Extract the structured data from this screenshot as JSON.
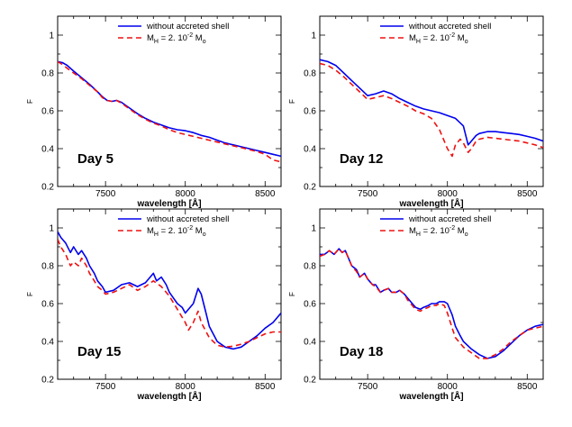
{
  "chart_data": [
    {
      "type": "line",
      "panel_label": "Day 5",
      "xlabel": "wavelength [Å]",
      "ylabel": "F",
      "xlim": [
        7200,
        8600
      ],
      "ylim": [
        0.2,
        1.1
      ],
      "xticks": [
        7500,
        8000,
        8500
      ],
      "yticks": [
        0.2,
        0.4,
        0.6,
        0.8,
        1.0
      ],
      "ytick_labels": [
        "0.2",
        "0.4",
        "0.6",
        "0.8",
        "1"
      ],
      "legend": {
        "loc": "top-right",
        "entries": [
          "without accreted shell",
          "M_H = 2. 10^-2 M_o"
        ]
      },
      "series": [
        {
          "name": "without accreted shell",
          "color": "#0000ee",
          "dash": "solid",
          "x": [
            7200,
            7230,
            7260,
            7300,
            7350,
            7400,
            7450,
            7480,
            7510,
            7540,
            7570,
            7600,
            7650,
            7700,
            7750,
            7800,
            7850,
            7900,
            7950,
            8000,
            8050,
            8100,
            8150,
            8200,
            8250,
            8300,
            8350,
            8400,
            8450,
            8500,
            8550,
            8600
          ],
          "y": [
            0.86,
            0.855,
            0.84,
            0.81,
            0.775,
            0.74,
            0.7,
            0.675,
            0.655,
            0.65,
            0.655,
            0.645,
            0.615,
            0.585,
            0.56,
            0.54,
            0.525,
            0.51,
            0.5,
            0.495,
            0.485,
            0.47,
            0.46,
            0.445,
            0.43,
            0.42,
            0.41,
            0.4,
            0.39,
            0.38,
            0.37,
            0.36
          ]
        },
        {
          "name": "M_H = 2. 10^-2 M_o",
          "color": "#ee1111",
          "dash": "dashed",
          "x": [
            7200,
            7230,
            7260,
            7300,
            7350,
            7400,
            7450,
            7480,
            7510,
            7540,
            7570,
            7600,
            7650,
            7700,
            7750,
            7800,
            7850,
            7900,
            7950,
            8000,
            8050,
            8100,
            8150,
            8200,
            8250,
            8300,
            8350,
            8400,
            8450,
            8500,
            8550,
            8600
          ],
          "y": [
            0.86,
            0.845,
            0.825,
            0.8,
            0.77,
            0.735,
            0.7,
            0.67,
            0.655,
            0.65,
            0.655,
            0.64,
            0.61,
            0.58,
            0.555,
            0.535,
            0.52,
            0.5,
            0.485,
            0.475,
            0.465,
            0.455,
            0.445,
            0.435,
            0.425,
            0.415,
            0.405,
            0.395,
            0.385,
            0.37,
            0.34,
            0.33
          ]
        }
      ]
    },
    {
      "type": "line",
      "panel_label": "Day 12",
      "xlabel": "wavelength [Å]",
      "ylabel": "F",
      "xlim": [
        7200,
        8600
      ],
      "ylim": [
        0.2,
        1.1
      ],
      "xticks": [
        7500,
        8000,
        8500
      ],
      "yticks": [
        0.2,
        0.4,
        0.6,
        0.8,
        1.0
      ],
      "ytick_labels": [
        "0.2",
        "0.4",
        "0.6",
        "0.8",
        "1"
      ],
      "legend": {
        "loc": "top-right",
        "entries": [
          "without accreted shell",
          "M_H = 2. 10^-2 M_o"
        ]
      },
      "series": [
        {
          "name": "without accreted shell",
          "color": "#0000ee",
          "dash": "solid",
          "x": [
            7200,
            7250,
            7300,
            7350,
            7400,
            7450,
            7500,
            7550,
            7600,
            7650,
            7700,
            7750,
            7800,
            7850,
            7900,
            7950,
            8000,
            8050,
            8100,
            8130,
            8150,
            8180,
            8200,
            8250,
            8300,
            8350,
            8400,
            8450,
            8500,
            8550,
            8600
          ],
          "y": [
            0.87,
            0.86,
            0.84,
            0.8,
            0.76,
            0.72,
            0.68,
            0.69,
            0.705,
            0.69,
            0.665,
            0.645,
            0.625,
            0.61,
            0.6,
            0.59,
            0.575,
            0.56,
            0.52,
            0.42,
            0.44,
            0.47,
            0.48,
            0.49,
            0.49,
            0.485,
            0.48,
            0.475,
            0.465,
            0.455,
            0.44
          ]
        },
        {
          "name": "M_H = 2. 10^-2 M_o",
          "color": "#ee1111",
          "dash": "dashed",
          "x": [
            7200,
            7250,
            7300,
            7350,
            7400,
            7450,
            7500,
            7550,
            7600,
            7650,
            7700,
            7750,
            7800,
            7850,
            7900,
            7950,
            8000,
            8030,
            8050,
            8080,
            8100,
            8130,
            8150,
            8180,
            8200,
            8250,
            8300,
            8350,
            8400,
            8450,
            8500,
            8550,
            8600
          ],
          "y": [
            0.85,
            0.84,
            0.815,
            0.78,
            0.74,
            0.7,
            0.66,
            0.67,
            0.68,
            0.665,
            0.645,
            0.625,
            0.6,
            0.585,
            0.56,
            0.5,
            0.4,
            0.36,
            0.42,
            0.45,
            0.43,
            0.38,
            0.4,
            0.44,
            0.45,
            0.46,
            0.455,
            0.45,
            0.445,
            0.44,
            0.43,
            0.42,
            0.405
          ]
        }
      ]
    },
    {
      "type": "line",
      "panel_label": "Day 15",
      "xlabel": "wavelength [Å]",
      "ylabel": "F",
      "xlim": [
        7200,
        8600
      ],
      "ylim": [
        0.2,
        1.1
      ],
      "xticks": [
        7500,
        8000,
        8500
      ],
      "yticks": [
        0.2,
        0.4,
        0.6,
        0.8,
        1.0
      ],
      "ytick_labels": [
        "0.2",
        "0.4",
        "0.6",
        "0.8",
        "1"
      ],
      "legend": {
        "loc": "top-right",
        "entries": [
          "without accreted shell",
          "M_H = 2. 10^-2 M_o"
        ]
      },
      "series": [
        {
          "name": "without accreted shell",
          "color": "#0000ee",
          "dash": "solid",
          "x": [
            7200,
            7220,
            7250,
            7280,
            7300,
            7330,
            7350,
            7380,
            7400,
            7430,
            7450,
            7480,
            7500,
            7550,
            7600,
            7650,
            7700,
            7750,
            7800,
            7820,
            7850,
            7880,
            7900,
            7950,
            7980,
            8000,
            8050,
            8080,
            8100,
            8130,
            8150,
            8200,
            8250,
            8300,
            8350,
            8400,
            8450,
            8500,
            8550,
            8600
          ],
          "y": [
            0.98,
            0.95,
            0.92,
            0.87,
            0.9,
            0.86,
            0.88,
            0.84,
            0.8,
            0.76,
            0.72,
            0.69,
            0.66,
            0.67,
            0.7,
            0.71,
            0.69,
            0.71,
            0.76,
            0.72,
            0.74,
            0.7,
            0.66,
            0.6,
            0.58,
            0.55,
            0.6,
            0.68,
            0.65,
            0.55,
            0.48,
            0.4,
            0.37,
            0.36,
            0.37,
            0.4,
            0.43,
            0.47,
            0.5,
            0.55
          ]
        },
        {
          "name": "M_H = 2. 10^-2 M_o",
          "color": "#ee1111",
          "dash": "dashed",
          "x": [
            7200,
            7220,
            7250,
            7280,
            7300,
            7330,
            7350,
            7380,
            7400,
            7430,
            7450,
            7480,
            7500,
            7550,
            7600,
            7650,
            7700,
            7750,
            7800,
            7850,
            7900,
            7950,
            8000,
            8020,
            8050,
            8080,
            8100,
            8150,
            8200,
            8250,
            8300,
            8350,
            8400,
            8450,
            8500,
            8550,
            8600
          ],
          "y": [
            0.94,
            0.9,
            0.86,
            0.8,
            0.82,
            0.8,
            0.84,
            0.8,
            0.76,
            0.72,
            0.69,
            0.67,
            0.65,
            0.66,
            0.68,
            0.7,
            0.67,
            0.69,
            0.72,
            0.69,
            0.64,
            0.57,
            0.5,
            0.46,
            0.5,
            0.56,
            0.5,
            0.42,
            0.38,
            0.37,
            0.375,
            0.385,
            0.4,
            0.42,
            0.44,
            0.45,
            0.45
          ]
        }
      ]
    },
    {
      "type": "line",
      "panel_label": "Day 18",
      "xlabel": "wavelength [Å]",
      "ylabel": "F",
      "xlim": [
        7200,
        8600
      ],
      "ylim": [
        0.2,
        1.1
      ],
      "xticks": [
        7500,
        8000,
        8500
      ],
      "yticks": [
        0.2,
        0.4,
        0.6,
        0.8,
        1.0
      ],
      "ytick_labels": [
        "0.2",
        "0.4",
        "0.6",
        "0.8",
        "1"
      ],
      "legend": {
        "loc": "top-right",
        "entries": [
          "without accreted shell",
          "M_H = 2. 10^-2 M_o"
        ]
      },
      "series": [
        {
          "name": "without accreted shell",
          "color": "#0000ee",
          "dash": "solid",
          "x": [
            7200,
            7230,
            7260,
            7290,
            7320,
            7340,
            7360,
            7380,
            7400,
            7430,
            7450,
            7480,
            7500,
            7530,
            7550,
            7580,
            7600,
            7630,
            7650,
            7680,
            7700,
            7730,
            7750,
            7780,
            7800,
            7830,
            7850,
            7880,
            7900,
            7930,
            7950,
            7980,
            8000,
            8030,
            8050,
            8080,
            8100,
            8150,
            8200,
            8250,
            8300,
            8350,
            8400,
            8450,
            8500,
            8550,
            8600
          ],
          "y": [
            0.86,
            0.86,
            0.88,
            0.86,
            0.89,
            0.87,
            0.88,
            0.84,
            0.8,
            0.78,
            0.74,
            0.76,
            0.73,
            0.7,
            0.7,
            0.66,
            0.67,
            0.68,
            0.66,
            0.66,
            0.67,
            0.65,
            0.63,
            0.6,
            0.58,
            0.57,
            0.58,
            0.59,
            0.6,
            0.6,
            0.61,
            0.61,
            0.6,
            0.54,
            0.48,
            0.43,
            0.4,
            0.36,
            0.33,
            0.31,
            0.32,
            0.35,
            0.39,
            0.43,
            0.46,
            0.48,
            0.49
          ]
        },
        {
          "name": "M_H = 2. 10^-2 M_o",
          "color": "#ee1111",
          "dash": "dashed",
          "x": [
            7200,
            7230,
            7260,
            7290,
            7320,
            7340,
            7360,
            7380,
            7400,
            7430,
            7450,
            7480,
            7500,
            7530,
            7550,
            7580,
            7600,
            7630,
            7650,
            7680,
            7700,
            7730,
            7750,
            7780,
            7800,
            7830,
            7850,
            7880,
            7900,
            7930,
            7950,
            7980,
            8000,
            8030,
            8050,
            8080,
            8100,
            8150,
            8200,
            8250,
            8300,
            8350,
            8400,
            8450,
            8500,
            8550,
            8600
          ],
          "y": [
            0.85,
            0.86,
            0.88,
            0.86,
            0.89,
            0.87,
            0.88,
            0.84,
            0.8,
            0.77,
            0.74,
            0.76,
            0.73,
            0.7,
            0.69,
            0.66,
            0.67,
            0.68,
            0.66,
            0.66,
            0.67,
            0.65,
            0.62,
            0.59,
            0.57,
            0.56,
            0.57,
            0.58,
            0.59,
            0.59,
            0.6,
            0.59,
            0.55,
            0.47,
            0.42,
            0.39,
            0.37,
            0.34,
            0.31,
            0.31,
            0.33,
            0.36,
            0.4,
            0.43,
            0.46,
            0.47,
            0.48
          ]
        }
      ]
    }
  ]
}
